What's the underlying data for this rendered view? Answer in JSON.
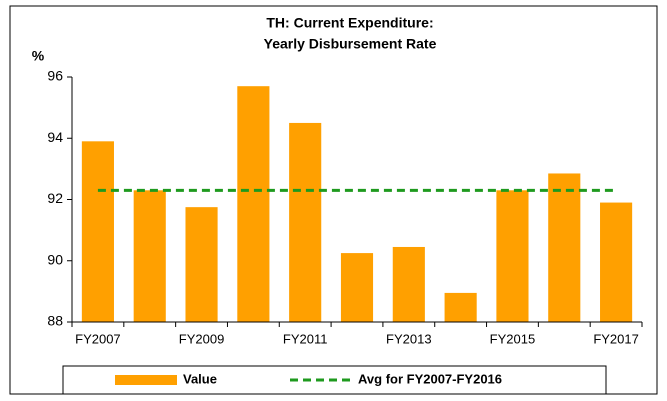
{
  "chart_data": {
    "type": "bar",
    "title": [
      "TH: Current Expenditure:",
      "Yearly Disbursement Rate"
    ],
    "y_label": "%",
    "categories": [
      "FY2007",
      null,
      "FY2009",
      null,
      "FY2011",
      null,
      "FY2013",
      null,
      "FY2015",
      null,
      "FY2017"
    ],
    "series": [
      {
        "name": "Value",
        "type": "bar",
        "color": "#ffa000",
        "values": [
          93.9,
          92.3,
          91.75,
          95.7,
          94.5,
          90.25,
          90.45,
          88.95,
          92.3,
          92.85,
          91.9
        ]
      },
      {
        "name": "Avg for FY2007-FY2016",
        "type": "line",
        "style": "dashed",
        "color": "#1e9a1e",
        "values": [
          92.3,
          92.3,
          92.3,
          92.3,
          92.3,
          92.3,
          92.3,
          92.3,
          92.3,
          92.3,
          92.3
        ]
      }
    ],
    "ylim": [
      88,
      96
    ],
    "yticks": [
      88,
      90,
      92,
      94,
      96
    ],
    "grid": false,
    "legend": "bottom"
  }
}
